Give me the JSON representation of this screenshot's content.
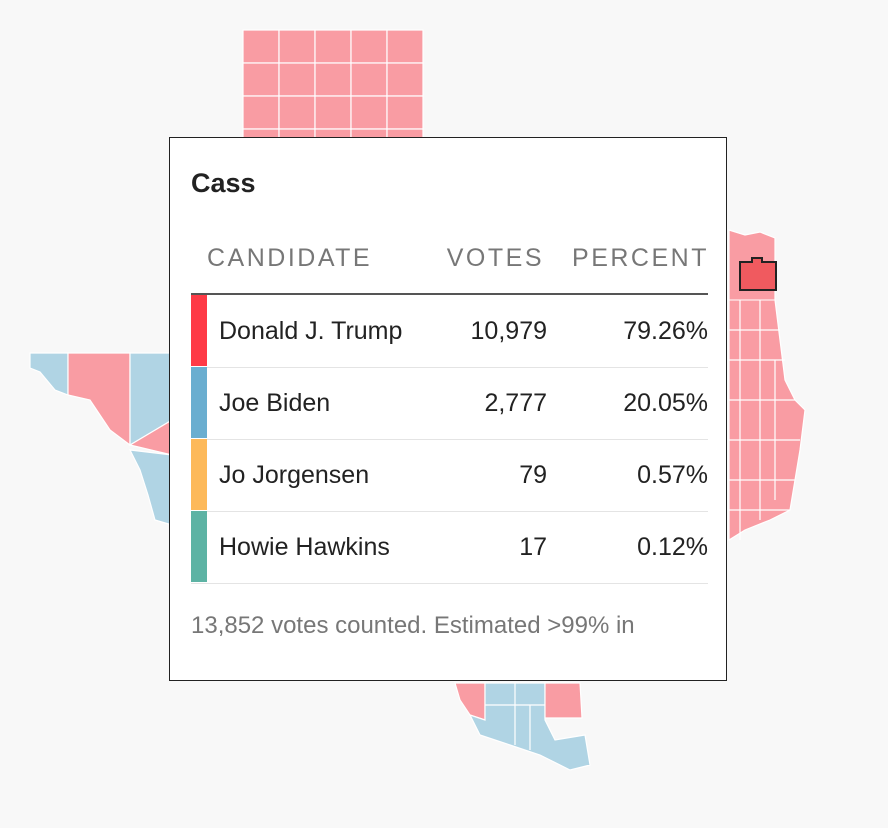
{
  "tooltip": {
    "title": "Cass",
    "headers": [
      "CANDIDATE",
      "VOTES",
      "PERCENT"
    ],
    "rows": [
      {
        "name": "Donald J. Trump",
        "votes": "10,979",
        "percent": "79.26%",
        "color": "#fe3a46"
      },
      {
        "name": "Joe Biden",
        "votes": "2,777",
        "percent": "20.05%",
        "color": "#6aaed0"
      },
      {
        "name": "Jo Jorgensen",
        "votes": "79",
        "percent": "0.57%",
        "color": "#fdb95a"
      },
      {
        "name": "Howie Hawkins",
        "votes": "17",
        "percent": "0.12%",
        "color": "#5db3a4"
      }
    ],
    "footer": "13,852 votes counted. Estimated >99% in"
  }
}
